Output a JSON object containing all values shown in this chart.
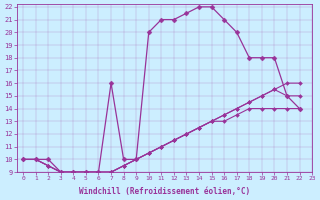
{
  "xlabel": "Windchill (Refroidissement éolien,°C)",
  "bg_color": "#cceeff",
  "line_color": "#993399",
  "xlim": [
    -0.5,
    23
  ],
  "ylim": [
    9,
    22.2
  ],
  "xticks": [
    0,
    1,
    2,
    3,
    4,
    5,
    6,
    7,
    8,
    9,
    10,
    11,
    12,
    13,
    14,
    15,
    16,
    17,
    18,
    19,
    20,
    21,
    22,
    23
  ],
  "yticks": [
    9,
    10,
    11,
    12,
    13,
    14,
    15,
    16,
    17,
    18,
    19,
    20,
    21,
    22
  ],
  "lines": [
    {
      "x": [
        0,
        1,
        2,
        3,
        4,
        5,
        6,
        7,
        8,
        9,
        10,
        11,
        12,
        13,
        14,
        15,
        16,
        17,
        18,
        19,
        20,
        21,
        22
      ],
      "y": [
        10,
        10,
        10,
        9,
        9,
        9,
        9,
        16,
        10,
        10,
        20,
        21,
        21,
        21.5,
        22,
        22,
        21,
        20,
        18,
        18,
        18,
        15,
        14
      ],
      "marker": "D",
      "markersize": 2.5,
      "linewidth": 0.9
    },
    {
      "x": [
        0,
        1,
        2,
        3,
        4,
        5,
        6,
        7,
        8,
        9,
        10,
        11,
        12,
        13,
        14,
        15,
        16,
        17,
        18,
        19,
        20,
        21,
        22
      ],
      "y": [
        10,
        10,
        9.5,
        9,
        9,
        9,
        9,
        9,
        9.5,
        10,
        10.5,
        11,
        11.5,
        12,
        12.5,
        13,
        13.5,
        14,
        14.5,
        15,
        15.5,
        16,
        16
      ],
      "marker": "D",
      "markersize": 2,
      "linewidth": 0.8
    },
    {
      "x": [
        0,
        1,
        2,
        3,
        4,
        5,
        6,
        7,
        8,
        9,
        10,
        11,
        12,
        13,
        14,
        15,
        16,
        17,
        18,
        19,
        20,
        21,
        22
      ],
      "y": [
        10,
        10,
        9.5,
        9,
        9,
        9,
        9,
        9,
        9.5,
        10,
        10.5,
        11,
        11.5,
        12,
        12.5,
        13,
        13.5,
        14,
        14.5,
        15,
        15.5,
        15,
        15
      ],
      "marker": "D",
      "markersize": 2,
      "linewidth": 0.8
    },
    {
      "x": [
        0,
        1,
        2,
        3,
        4,
        5,
        6,
        7,
        8,
        9,
        10,
        11,
        12,
        13,
        14,
        15,
        16,
        17,
        18,
        19,
        20,
        21,
        22
      ],
      "y": [
        10,
        10,
        9.5,
        9,
        9,
        9,
        9,
        9,
        9.5,
        10,
        10.5,
        11,
        11.5,
        12,
        12.5,
        13,
        13,
        13.5,
        14,
        14,
        14,
        14,
        14
      ],
      "marker": "D",
      "markersize": 2,
      "linewidth": 0.8
    }
  ]
}
